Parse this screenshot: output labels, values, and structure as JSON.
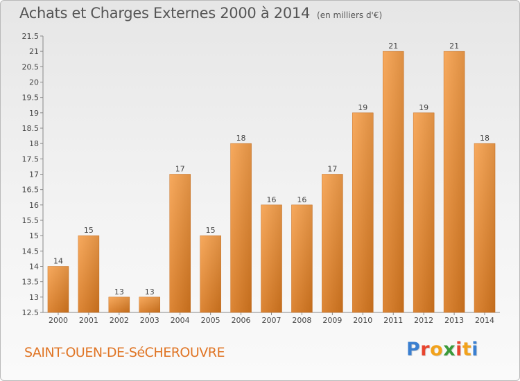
{
  "header": {
    "title": "Achats et Charges Externes 2000 à 2014",
    "subtitle": "(en milliers d'€)"
  },
  "footer": {
    "commune": "SAINT-OUEN-DE-SéCHEROUVRE",
    "logo_letters": [
      "P",
      "r",
      "o",
      "x",
      "i",
      "t",
      "i"
    ],
    "logo_colors": [
      "#3a7fd0",
      "#e8442e",
      "#f2a21b",
      "#3a9a3a",
      "#e8442e",
      "#f2a21b",
      "#3a7fd0"
    ]
  },
  "chart_data": {
    "type": "bar",
    "title": "Achats et Charges Externes 2000 à 2014",
    "subtitle": "(en milliers d'€)",
    "categories": [
      "2000",
      "2001",
      "2002",
      "2003",
      "2004",
      "2005",
      "2006",
      "2007",
      "2008",
      "2009",
      "2010",
      "2011",
      "2012",
      "2013",
      "2014"
    ],
    "values": [
      14,
      15,
      13,
      13,
      17,
      15,
      18,
      16,
      16,
      17,
      19,
      21,
      19,
      21,
      18
    ],
    "value_labels": [
      "14",
      "15",
      "13",
      "13",
      "17",
      "15",
      "18",
      "16",
      "16",
      "17",
      "19",
      "21",
      "19",
      "21",
      "18"
    ],
    "ylim": [
      12.5,
      21.5
    ],
    "yticks": [
      12.5,
      13,
      13.5,
      14,
      14.5,
      15,
      15.5,
      16,
      16.5,
      17,
      17.5,
      18,
      18.5,
      19,
      19.5,
      20,
      20.5,
      21,
      21.5
    ],
    "ytick_labels": [
      "12.5",
      "13",
      "13.5",
      "14",
      "14.5",
      "15",
      "15.5",
      "16",
      "16.5",
      "17",
      "17.5",
      "18",
      "18.5",
      "19",
      "19.5",
      "20",
      "20.5",
      "21",
      "21.5"
    ],
    "grid": false,
    "bar_color_top": "#f6a04c",
    "bar_color_bottom": "#d8781f"
  }
}
